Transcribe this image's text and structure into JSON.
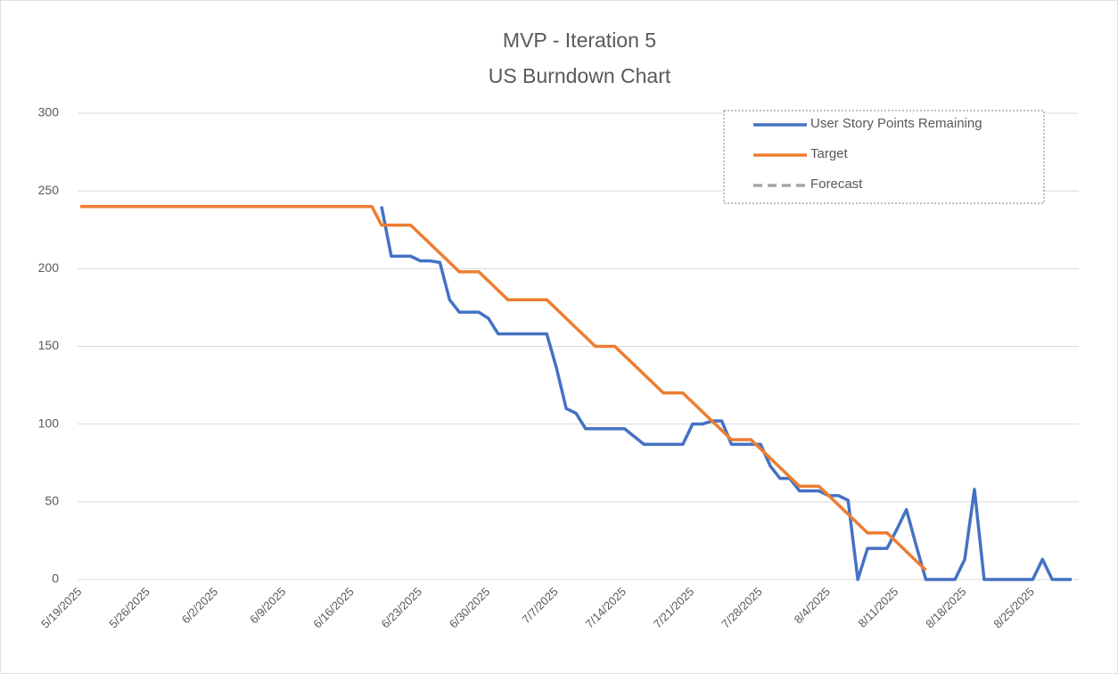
{
  "chart_data": {
    "type": "line",
    "title": "MVP - Iteration 5",
    "subtitle": "US Burndown Chart",
    "categories": [
      "5/19/2025",
      null,
      null,
      null,
      null,
      null,
      null,
      "5/26/2025",
      null,
      null,
      null,
      null,
      null,
      null,
      "6/2/2025",
      null,
      null,
      null,
      null,
      null,
      null,
      "6/9/2025",
      null,
      null,
      null,
      null,
      null,
      null,
      "6/16/2025",
      null,
      null,
      null,
      null,
      null,
      null,
      "6/23/2025",
      null,
      null,
      null,
      null,
      null,
      null,
      "6/30/2025",
      null,
      null,
      null,
      null,
      null,
      null,
      "7/7/2025",
      null,
      null,
      null,
      null,
      null,
      null,
      "7/14/2025",
      null,
      null,
      null,
      null,
      null,
      null,
      "7/21/2025",
      null,
      null,
      null,
      null,
      null,
      null,
      "7/28/2025",
      null,
      null,
      null,
      null,
      null,
      null,
      "8/4/2025",
      null,
      null,
      null,
      null,
      null,
      null,
      "8/11/2025",
      null,
      null,
      null,
      null,
      null,
      null,
      "8/18/2025",
      null,
      null,
      null,
      null,
      null,
      null,
      "8/25/2025",
      null,
      null,
      null,
      null
    ],
    "series": [
      {
        "name": "User Story Points Remaining",
        "color": "#4472c4",
        "dash": false,
        "values": [
          null,
          null,
          null,
          null,
          null,
          null,
          null,
          null,
          null,
          null,
          null,
          null,
          null,
          null,
          null,
          null,
          null,
          null,
          null,
          null,
          null,
          null,
          null,
          null,
          null,
          null,
          null,
          null,
          null,
          null,
          null,
          240,
          208,
          208,
          208,
          205,
          205,
          204,
          180,
          172,
          172,
          172,
          168,
          158,
          158,
          158,
          158,
          158,
          158,
          136,
          110,
          107,
          97,
          97,
          97,
          97,
          97,
          92,
          87,
          87,
          87,
          87,
          87,
          100,
          100,
          102,
          102,
          87,
          87,
          87,
          87,
          73,
          65,
          65,
          57,
          57,
          57,
          54,
          54,
          51,
          0,
          20,
          20,
          20,
          32,
          45,
          22,
          0,
          0,
          0,
          0,
          13,
          58,
          0,
          0,
          0,
          0,
          0,
          0,
          13,
          0,
          0,
          0
        ]
      },
      {
        "name": "Target",
        "color": "#ed7d31",
        "dash": false,
        "values": [
          240,
          240,
          240,
          240,
          240,
          240,
          240,
          240,
          240,
          240,
          240,
          240,
          240,
          240,
          240,
          240,
          240,
          240,
          240,
          240,
          240,
          240,
          240,
          240,
          240,
          240,
          240,
          240,
          240,
          240,
          240,
          228,
          228,
          228,
          228,
          222,
          216,
          210,
          204,
          198,
          198,
          198,
          192,
          186,
          180,
          180,
          180,
          180,
          180,
          174,
          168,
          162,
          156,
          150,
          150,
          150,
          144,
          138,
          132,
          126,
          120,
          120,
          120,
          114,
          108,
          102,
          96,
          90,
          90,
          90,
          84,
          78,
          72,
          66,
          60,
          60,
          60,
          54,
          48,
          42,
          36,
          30,
          30,
          30,
          24,
          18,
          12,
          6,
          null,
          null,
          null,
          null,
          null,
          null,
          null,
          null,
          null,
          null,
          null,
          null,
          null,
          null,
          null
        ]
      },
      {
        "name": "Forecast",
        "color": "#a5a5a5",
        "dash": true,
        "values": [
          null,
          null,
          null,
          null,
          null,
          null,
          null,
          null,
          null,
          null,
          null,
          null,
          null,
          null,
          null,
          null,
          null,
          null,
          null,
          null,
          null,
          null,
          null,
          null,
          null,
          null,
          null,
          null,
          null,
          null,
          null,
          null,
          null,
          null,
          null,
          null,
          null,
          null,
          null,
          null,
          null,
          null,
          null,
          null,
          null,
          null,
          null,
          null,
          null,
          null,
          null,
          null,
          null,
          null,
          null,
          null,
          null,
          null,
          null,
          null,
          null,
          null,
          null,
          null,
          null,
          null,
          null,
          null,
          null,
          null,
          null,
          null,
          null,
          null,
          null,
          null,
          null,
          null,
          null,
          null,
          null,
          null,
          null,
          null,
          null,
          null,
          null,
          null,
          null,
          null,
          null,
          null,
          null,
          null,
          null,
          null,
          null,
          null,
          null,
          null,
          null,
          null,
          null
        ]
      }
    ],
    "ylim": [
      0,
      300
    ],
    "yticks": [
      0,
      50,
      100,
      150,
      200,
      250,
      300
    ],
    "grid": true,
    "legend": "top-right"
  }
}
